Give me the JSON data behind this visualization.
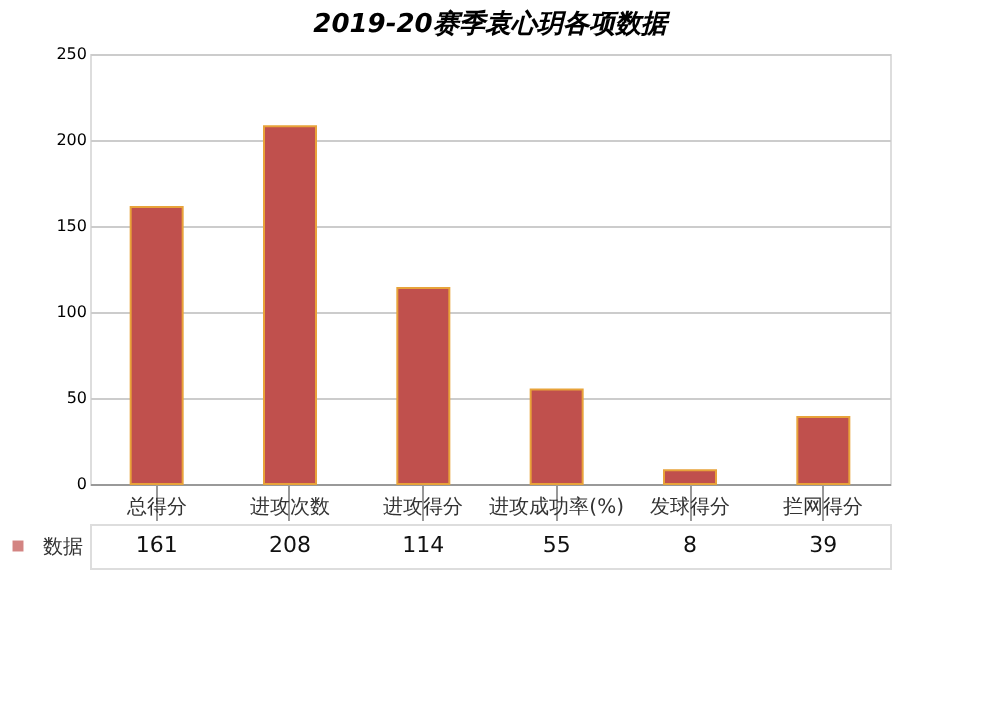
{
  "chart_data": {
    "type": "bar",
    "title": "2019-20赛季袁心玥各项数据",
    "categories": [
      "总得分",
      "进攻次数",
      "进攻得分",
      "进攻成功率(%)",
      "发球得分",
      "拦网得分"
    ],
    "series": [
      {
        "name": "数据",
        "color": "#c0504d",
        "values": [
          161,
          208,
          114,
          55,
          8,
          39
        ]
      }
    ],
    "ylim": [
      0,
      250
    ],
    "yticks": [
      0,
      50,
      100,
      150,
      200,
      250
    ],
    "grid": "y",
    "legend": "bottom left",
    "data_labels": true
  }
}
